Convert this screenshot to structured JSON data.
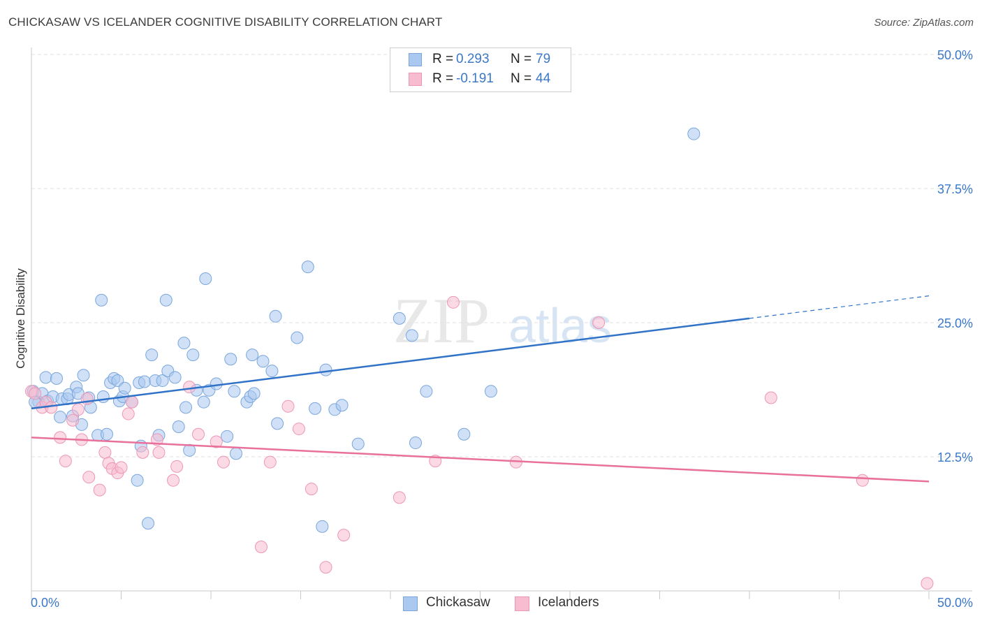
{
  "header": {
    "title": "CHICKASAW VS ICELANDER COGNITIVE DISABILITY CORRELATION CHART",
    "source": "Source: ZipAtlas.com"
  },
  "watermark": {
    "zip": "ZIP",
    "atlas": "atlas"
  },
  "legend": {
    "r_label": "R =",
    "n_label": "N =",
    "series": [
      {
        "name": "Chickasaw",
        "r": "0.293",
        "n": "79"
      },
      {
        "name": "Icelanders",
        "r": "-0.191",
        "n": "44"
      }
    ]
  },
  "colors": {
    "chickasaw_fill": "#aac8f0",
    "chickasaw_stroke": "#7aa6dc",
    "chickasaw_line": "#2f72c8",
    "icelanders_fill": "#f7bcd0",
    "icelanders_stroke": "#ec97b5",
    "icelanders_line": "#e8709a",
    "axis_label": "#3a78c8"
  },
  "chart_data": {
    "type": "scatter",
    "title": "CHICKASAW VS ICELANDER COGNITIVE DISABILITY CORRELATION CHART",
    "xlabel": "",
    "ylabel": "Cognitive Disability",
    "xlim": [
      0,
      50
    ],
    "ylim": [
      0,
      50
    ],
    "x_tick_labels": [
      "0.0%",
      "50.0%"
    ],
    "y_ticks": [
      12.5,
      25.0,
      37.5,
      50.0
    ],
    "y_tick_labels": [
      "12.5%",
      "25.0%",
      "37.5%",
      "50.0%"
    ],
    "grid": "horizontal dashed",
    "series": [
      {
        "name": "Chickasaw",
        "r": 0.293,
        "n": 79,
        "trend": {
          "x_start": 0,
          "y_start": 17.0,
          "x_end": 40,
          "y_end": 25.4,
          "dashed_to_x": 50,
          "dashed_to_y": 27.5
        },
        "points": [
          [
            0.1,
            18.6
          ],
          [
            0.4,
            17.6
          ],
          [
            0.6,
            18.4
          ],
          [
            0.9,
            17.7
          ],
          [
            0.8,
            19.9
          ],
          [
            1.2,
            18.1
          ],
          [
            1.4,
            19.8
          ],
          [
            1.6,
            16.2
          ],
          [
            1.7,
            17.9
          ],
          [
            2.0,
            17.9
          ],
          [
            2.1,
            18.3
          ],
          [
            2.3,
            16.3
          ],
          [
            2.5,
            19.0
          ],
          [
            2.6,
            18.4
          ],
          [
            2.8,
            15.5
          ],
          [
            2.9,
            20.1
          ],
          [
            3.2,
            18.0
          ],
          [
            3.3,
            17.1
          ],
          [
            3.7,
            14.5
          ],
          [
            3.9,
            27.1
          ],
          [
            4.0,
            18.1
          ],
          [
            4.2,
            14.6
          ],
          [
            4.4,
            19.4
          ],
          [
            4.6,
            19.8
          ],
          [
            4.8,
            19.6
          ],
          [
            4.9,
            17.7
          ],
          [
            5.1,
            18.1
          ],
          [
            5.2,
            18.9
          ],
          [
            5.6,
            17.6
          ],
          [
            5.9,
            10.3
          ],
          [
            6.0,
            19.4
          ],
          [
            6.1,
            13.5
          ],
          [
            6.3,
            19.5
          ],
          [
            6.5,
            6.3
          ],
          [
            6.7,
            22.0
          ],
          [
            6.9,
            19.6
          ],
          [
            7.1,
            14.5
          ],
          [
            7.3,
            19.6
          ],
          [
            7.5,
            27.1
          ],
          [
            7.6,
            20.5
          ],
          [
            8.0,
            19.9
          ],
          [
            8.2,
            15.3
          ],
          [
            8.5,
            23.1
          ],
          [
            8.6,
            17.1
          ],
          [
            8.8,
            13.1
          ],
          [
            9.0,
            22.0
          ],
          [
            9.2,
            18.7
          ],
          [
            9.6,
            17.6
          ],
          [
            9.7,
            29.1
          ],
          [
            9.9,
            18.7
          ],
          [
            10.3,
            19.3
          ],
          [
            10.9,
            14.4
          ],
          [
            11.1,
            21.6
          ],
          [
            11.3,
            18.6
          ],
          [
            11.4,
            12.8
          ],
          [
            12.0,
            17.6
          ],
          [
            12.2,
            18.1
          ],
          [
            12.3,
            22.0
          ],
          [
            12.4,
            18.4
          ],
          [
            12.9,
            21.4
          ],
          [
            13.4,
            20.5
          ],
          [
            13.6,
            25.6
          ],
          [
            13.7,
            15.6
          ],
          [
            14.8,
            23.6
          ],
          [
            15.4,
            30.2
          ],
          [
            15.8,
            17.0
          ],
          [
            16.2,
            6.0
          ],
          [
            16.4,
            20.6
          ],
          [
            16.9,
            16.9
          ],
          [
            17.3,
            17.3
          ],
          [
            18.2,
            13.7
          ],
          [
            20.5,
            25.4
          ],
          [
            21.2,
            23.8
          ],
          [
            21.4,
            13.8
          ],
          [
            22.0,
            18.6
          ],
          [
            24.1,
            14.6
          ],
          [
            25.6,
            18.6
          ],
          [
            36.9,
            42.6
          ],
          [
            0.2,
            17.6
          ]
        ]
      },
      {
        "name": "Icelanders",
        "r": -0.191,
        "n": 44,
        "trend": {
          "x_start": 0,
          "y_start": 14.3,
          "x_end": 50,
          "y_end": 10.2
        },
        "points": [
          [
            0.0,
            18.6
          ],
          [
            0.2,
            18.4
          ],
          [
            0.6,
            17.1
          ],
          [
            0.8,
            17.6
          ],
          [
            1.1,
            17.1
          ],
          [
            1.6,
            14.3
          ],
          [
            1.9,
            12.1
          ],
          [
            2.3,
            15.9
          ],
          [
            2.6,
            16.9
          ],
          [
            2.8,
            14.1
          ],
          [
            3.1,
            17.9
          ],
          [
            3.2,
            10.6
          ],
          [
            3.8,
            9.4
          ],
          [
            4.1,
            12.9
          ],
          [
            4.3,
            11.9
          ],
          [
            4.5,
            11.4
          ],
          [
            4.8,
            11.0
          ],
          [
            5.0,
            11.5
          ],
          [
            5.4,
            16.5
          ],
          [
            5.6,
            17.6
          ],
          [
            6.2,
            12.9
          ],
          [
            7.0,
            14.1
          ],
          [
            7.1,
            12.9
          ],
          [
            7.9,
            10.3
          ],
          [
            8.1,
            11.6
          ],
          [
            8.8,
            19.0
          ],
          [
            9.3,
            14.6
          ],
          [
            10.3,
            13.9
          ],
          [
            10.7,
            12.0
          ],
          [
            13.3,
            12.0
          ],
          [
            14.3,
            17.2
          ],
          [
            14.9,
            15.1
          ],
          [
            15.6,
            9.5
          ],
          [
            16.4,
            2.2
          ],
          [
            17.4,
            5.2
          ],
          [
            20.5,
            8.7
          ],
          [
            22.5,
            12.1
          ],
          [
            23.5,
            26.9
          ],
          [
            27.0,
            12.0
          ],
          [
            31.6,
            25.0
          ],
          [
            41.2,
            18.0
          ],
          [
            46.3,
            10.3
          ],
          [
            49.9,
            0.7
          ],
          [
            12.8,
            4.1
          ]
        ]
      }
    ]
  }
}
